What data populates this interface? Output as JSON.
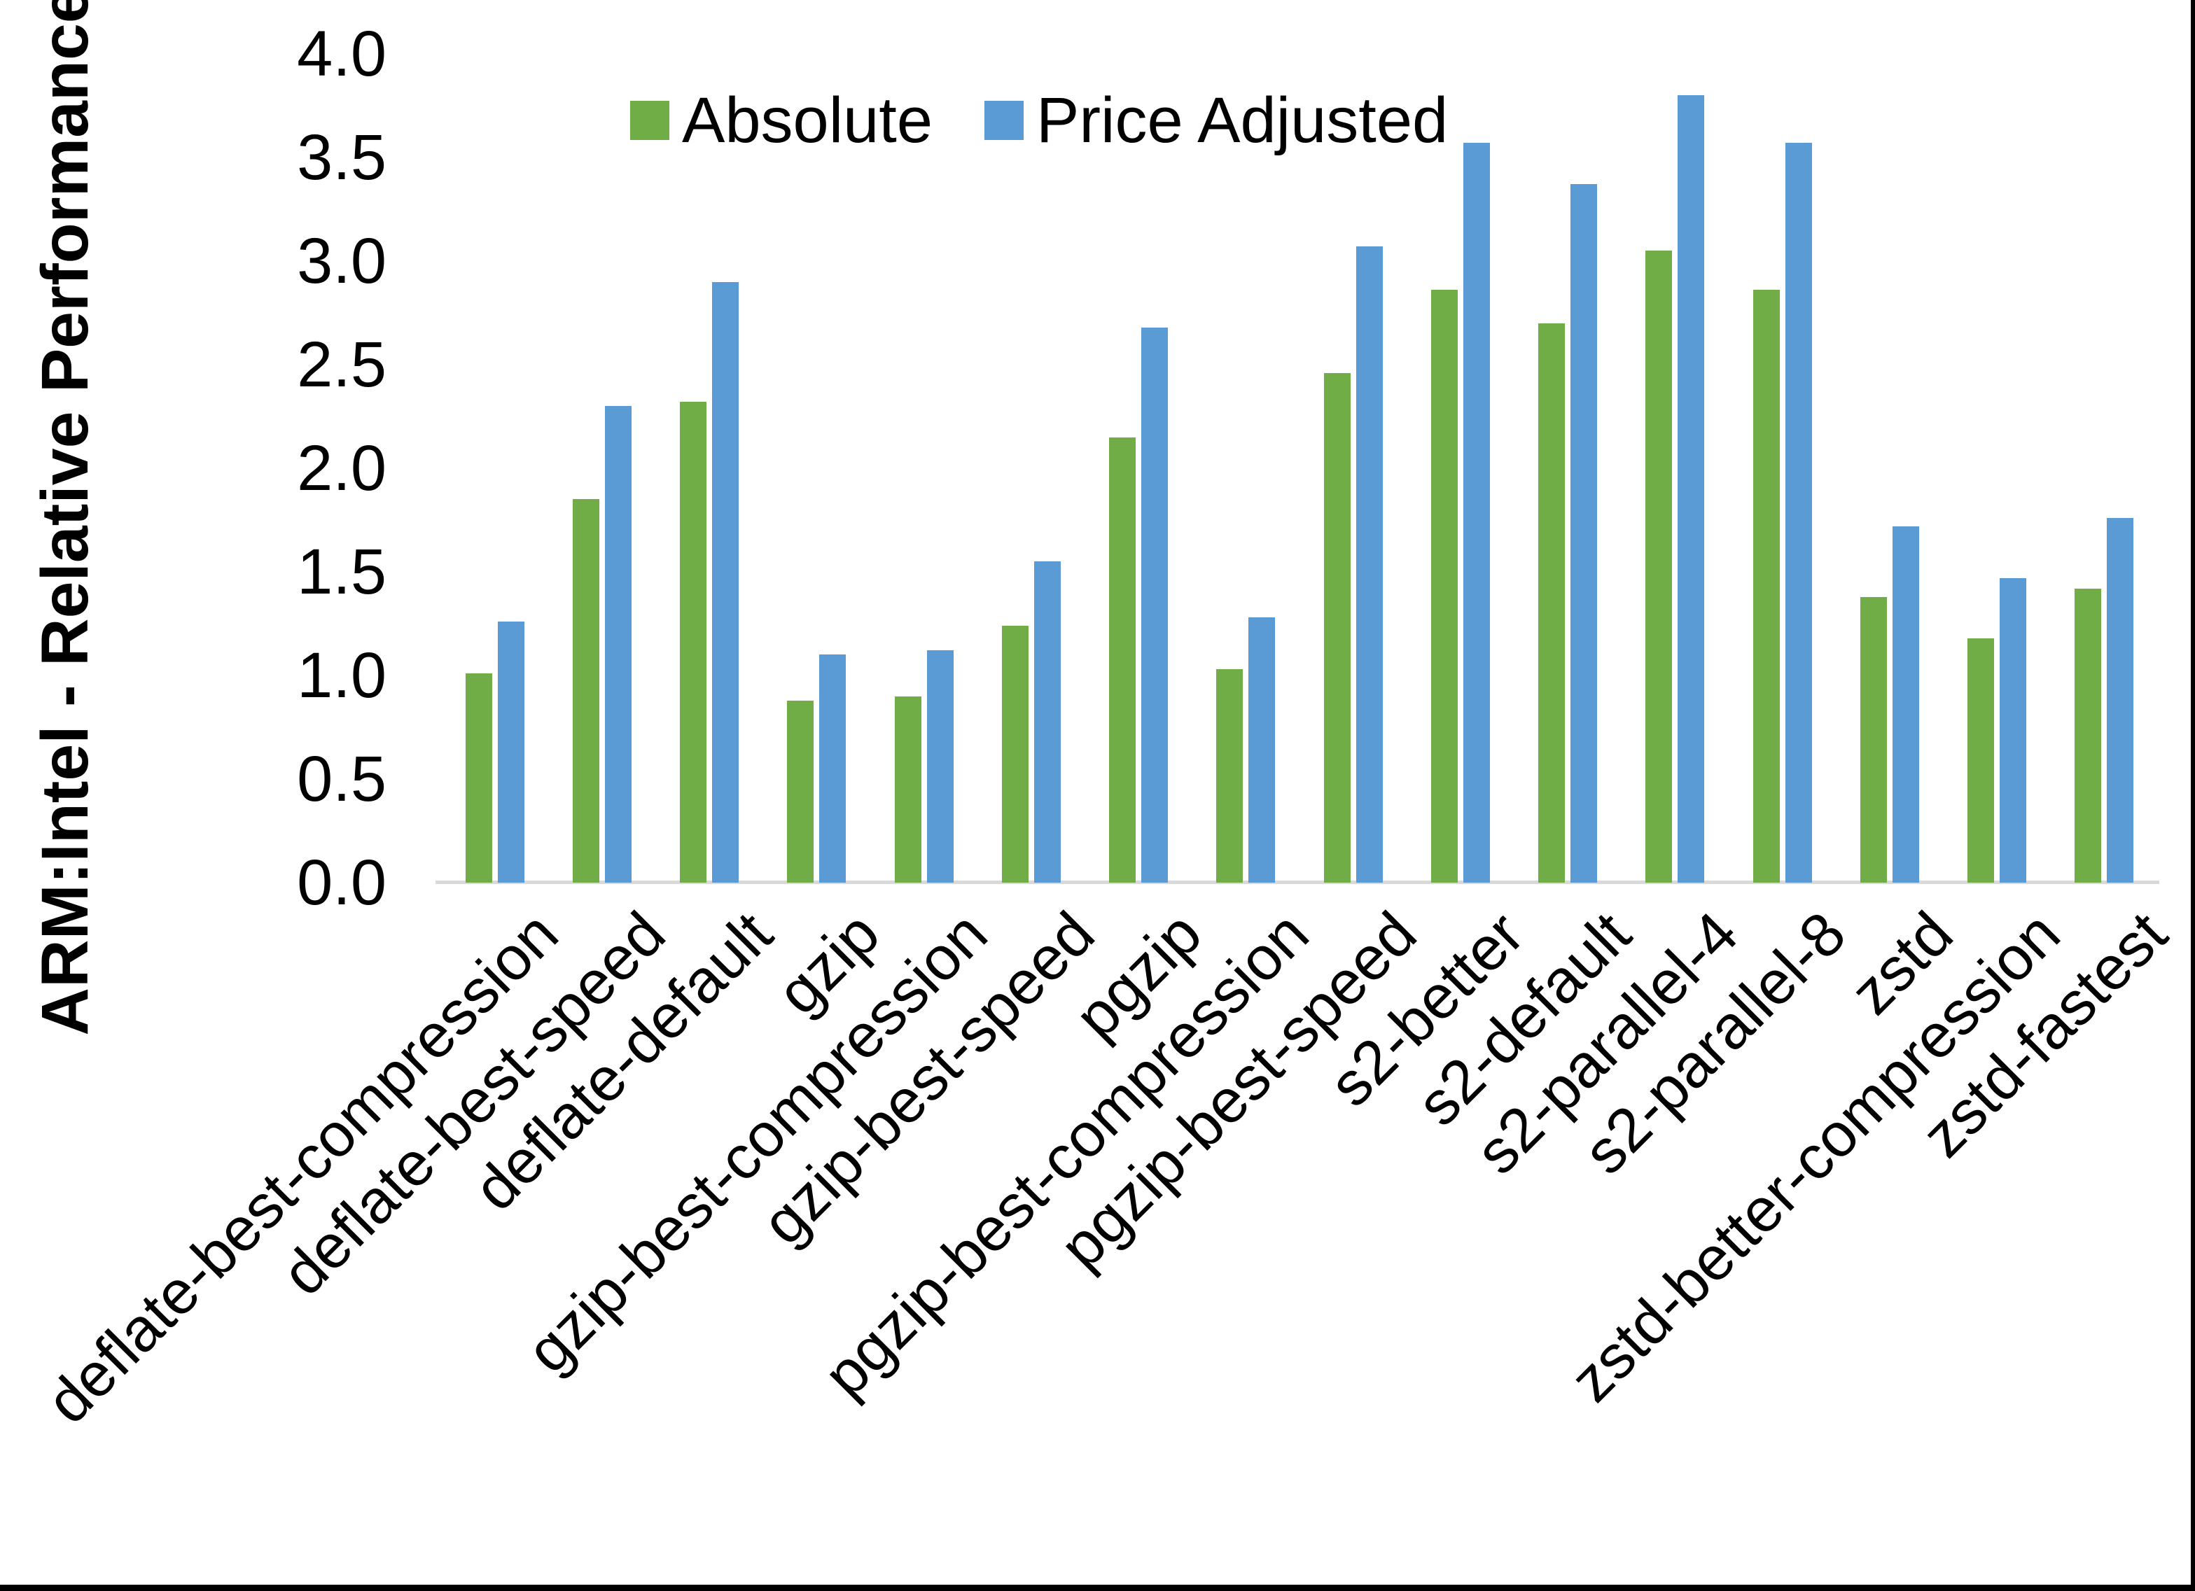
{
  "figure": {
    "background": "#FFFFFF",
    "right_border_color": "#000000",
    "bottom_border_color": "#000000"
  },
  "chart_data": {
    "type": "bar",
    "title": "",
    "ylabel": "ARM:Intel - Relative Performance",
    "xlabel": "",
    "ylim": [
      0.0,
      4.0
    ],
    "ytick_step": 0.5,
    "ytick_labels": [
      "4.0",
      "3.5",
      "3.0",
      "2.5",
      "2.0",
      "1.5",
      "1.0",
      "0.5",
      "0.0"
    ],
    "grid": false,
    "axis_line_color": "#D9D9D9",
    "legend_position": "top",
    "categories": [
      "deflate-best-compression",
      "deflate-best-speed",
      "deflate-default",
      "gzip",
      "gzip-best-compression",
      "gzip-best-speed",
      "pgzip",
      "pgzip-best-compression",
      "pgzip-best-speed",
      "s2-better",
      "s2-default",
      "s2-parallel-4",
      "s2-parallel-8",
      "zstd",
      "zstd-better-compression",
      "zstd-fastest"
    ],
    "series": [
      {
        "name": "Absolute",
        "color": "#70AD47",
        "values": [
          1.01,
          1.85,
          2.32,
          0.88,
          0.9,
          1.24,
          2.15,
          1.03,
          2.46,
          2.86,
          2.7,
          3.05,
          2.86,
          1.38,
          1.18,
          1.42
        ]
      },
      {
        "name": "Price Adjusted",
        "color": "#5B9BD5",
        "values": [
          1.26,
          2.3,
          2.9,
          1.1,
          1.12,
          1.55,
          2.68,
          1.28,
          3.07,
          3.57,
          3.37,
          3.8,
          3.57,
          1.72,
          1.47,
          1.76
        ]
      }
    ]
  }
}
